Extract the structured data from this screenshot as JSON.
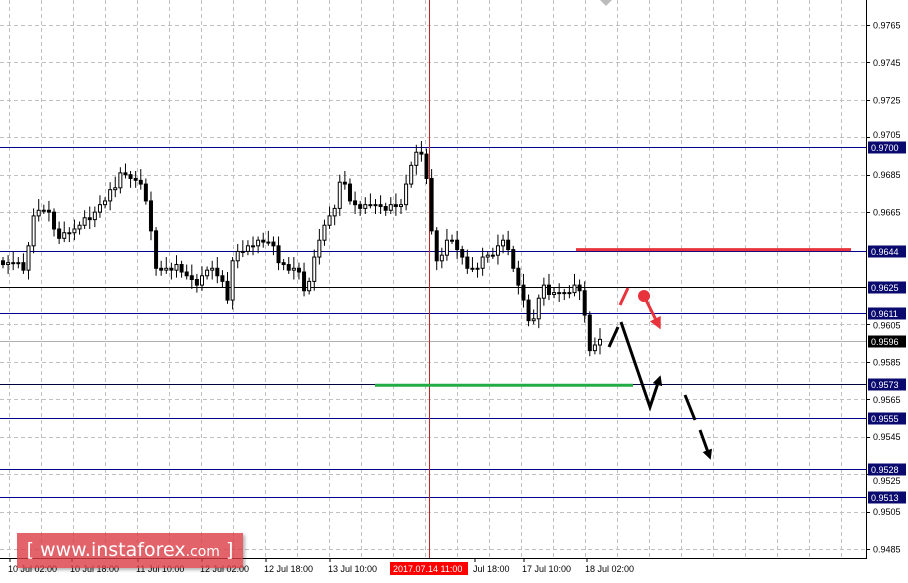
{
  "chart_data": {
    "type": "candlestick",
    "ylim": [
      0.9475,
      0.9778
    ],
    "y_ticks": [
      "0.9765",
      "0.9745",
      "0.9725",
      "0.9705",
      "0.9685",
      "0.9665",
      "0.9605",
      "0.9585",
      "0.9565",
      "0.9545",
      "0.9525",
      "0.9505",
      "0.9485"
    ],
    "x_ticks": [
      "10 Jul 02:00",
      "10 Jul 18:00",
      "11 Jul 10:00",
      "12 Jul 02:00",
      "12 Jul 18:00",
      "13 Jul 10:00",
      "Jul 18:00",
      "17 Jul 10:00",
      "18 Jul 02:00"
    ],
    "crosshair_time_label": "2017.07.14 11:00",
    "current_price": "0.9596",
    "levels": [
      {
        "label": "0.9700",
        "color": "#00008b"
      },
      {
        "label": "0.9644",
        "color": "#00008b"
      },
      {
        "label": "0.9625",
        "color": "#000000"
      },
      {
        "label": "0.9611",
        "color": "#00008b"
      },
      {
        "label": "0.9573",
        "color": "#000040"
      },
      {
        "label": "0.9555",
        "color": "#00008b"
      },
      {
        "label": "0.9528",
        "color": "#00008b"
      },
      {
        "label": "0.9513",
        "color": "#00008b"
      }
    ],
    "resistance_zone": {
      "price": 0.9645,
      "color": "#e8333c"
    },
    "support_zone": {
      "price": 0.9573,
      "color": "#22aa44"
    },
    "closes": [
      0.9637,
      0.9638,
      0.9638,
      0.9638,
      0.9634,
      0.9647,
      0.9663,
      0.9666,
      0.9666,
      0.9665,
      0.9656,
      0.9651,
      0.9654,
      0.9654,
      0.9656,
      0.9658,
      0.9662,
      0.9661,
      0.9665,
      0.9669,
      0.9671,
      0.9677,
      0.9678,
      0.9686,
      0.9685,
      0.9683,
      0.9682,
      0.968,
      0.9671,
      0.9655,
      0.9635,
      0.9634,
      0.9635,
      0.9634,
      0.9637,
      0.9633,
      0.9631,
      0.9629,
      0.9626,
      0.9631,
      0.9634,
      0.9635,
      0.9631,
      0.9628,
      0.9618,
      0.9639,
      0.9644,
      0.9644,
      0.9647,
      0.9647,
      0.965,
      0.9649,
      0.9649,
      0.9647,
      0.9638,
      0.9637,
      0.9634,
      0.9635,
      0.9633,
      0.9623,
      0.9628,
      0.9641,
      0.965,
      0.9658,
      0.9663,
      0.9667,
      0.9681,
      0.968,
      0.9671,
      0.9669,
      0.9667,
      0.9669,
      0.9669,
      0.9669,
      0.9668,
      0.9666,
      0.9669,
      0.9668,
      0.9669,
      0.968,
      0.969,
      0.9697,
      0.9696,
      0.9683,
      0.9655,
      0.9639,
      0.9642,
      0.965,
      0.965,
      0.9645,
      0.9641,
      0.9635,
      0.9635,
      0.9635,
      0.9641,
      0.9642,
      0.9642,
      0.9647,
      0.965,
      0.9645,
      0.9635,
      0.9626,
      0.9618,
      0.9607,
      0.9608,
      0.9619,
      0.9626,
      0.9621,
      0.9622,
      0.9622,
      0.9622,
      0.9622,
      0.9626,
      0.9623,
      0.961,
      0.9591,
      0.9594,
      0.9597
    ]
  },
  "watermark": {
    "text": "www.instaforex",
    "suffix": ".com",
    "open": "[",
    "close": "]"
  }
}
